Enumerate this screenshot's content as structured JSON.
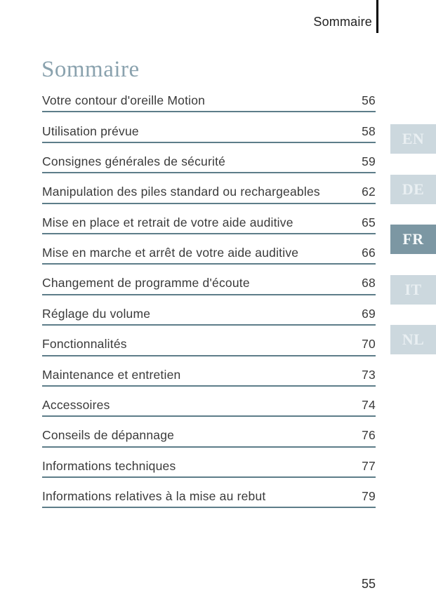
{
  "header": {
    "running_title": "Sommaire"
  },
  "page": {
    "title": "Sommaire",
    "number": "55"
  },
  "toc": {
    "entries": [
      {
        "label": "Votre contour d'oreille Motion",
        "page": "56"
      },
      {
        "label": "Utilisation prévue",
        "page": "58"
      },
      {
        "label": "Consignes générales de sécurité",
        "page": "59"
      },
      {
        "label": "Manipulation des piles standard ou rechargeables",
        "page": "62"
      },
      {
        "label": "Mise en place et retrait de votre aide auditive",
        "page": "65"
      },
      {
        "label": "Mise en marche et arrêt de votre aide auditive",
        "page": "66"
      },
      {
        "label": "Changement de programme d'écoute",
        "page": "68"
      },
      {
        "label": "Réglage du volume",
        "page": "69"
      },
      {
        "label": "Fonctionnalités",
        "page": "70"
      },
      {
        "label": "Maintenance et entretien",
        "page": "73"
      },
      {
        "label": "Accessoires",
        "page": "74"
      },
      {
        "label": "Conseils de dépannage",
        "page": "76"
      },
      {
        "label": "Informations techniques",
        "page": "77"
      },
      {
        "label": "Informations relatives à la mise au rebut",
        "page": "79"
      }
    ]
  },
  "language_tabs": {
    "items": [
      {
        "label": "EN",
        "active": false
      },
      {
        "label": "DE",
        "active": false
      },
      {
        "label": "FR",
        "active": true
      },
      {
        "label": "IT",
        "active": false
      },
      {
        "label": "NL",
        "active": false
      }
    ]
  },
  "colors": {
    "title": "#8aa2ae",
    "toc_rule": "#5d7d89",
    "body_text": "#3a3a3a",
    "tab_inactive_bg": "#ccd8de",
    "tab_inactive_text": "#e9eff2",
    "tab_active_bg": "#7c97a3",
    "tab_active_text": "#f4f8f9",
    "header_line": "#000000"
  }
}
